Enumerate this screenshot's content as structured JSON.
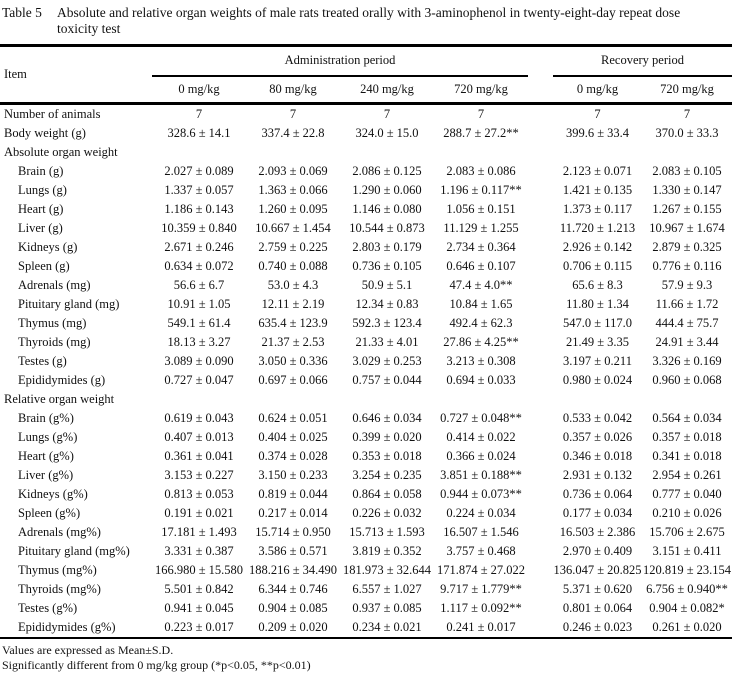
{
  "caption": {
    "label": "Table 5",
    "text": "Absolute and relative organ weights of male rats treated orally with 3-aminophenol in twenty-eight-day repeat dose toxicity test"
  },
  "header": {
    "item_label": "Item",
    "admin_label": "Administration period",
    "recovery_label": "Recovery period",
    "doses": [
      "0 mg/kg",
      "80 mg/kg",
      "240 mg/kg",
      "720 mg/kg",
      "0 mg/kg",
      "720 mg/kg"
    ]
  },
  "table": {
    "rows": [
      {
        "label": "Number of animals",
        "indent": 0,
        "section": false,
        "values": [
          "7",
          "7",
          "7",
          "7",
          "7",
          "7"
        ]
      },
      {
        "label": "Body weight (g)",
        "indent": 0,
        "section": false,
        "values": [
          "328.6 ± 14.1",
          "337.4 ± 22.8",
          "324.0 ± 15.0",
          "288.7 ± 27.2**",
          "399.6 ± 33.4",
          "370.0 ± 33.3"
        ]
      },
      {
        "label": "Absolute organ weight",
        "indent": 0,
        "section": true,
        "values": []
      },
      {
        "label": "Brain (g)",
        "indent": 1,
        "section": false,
        "values": [
          "2.027 ± 0.089",
          "2.093 ± 0.069",
          "2.086 ± 0.125",
          "2.083 ± 0.086",
          "2.123 ± 0.071",
          "2.083 ± 0.105"
        ]
      },
      {
        "label": "Lungs (g)",
        "indent": 1,
        "section": false,
        "values": [
          "1.337 ± 0.057",
          "1.363 ± 0.066",
          "1.290 ± 0.060",
          "1.196 ± 0.117**",
          "1.421 ± 0.135",
          "1.330 ± 0.147"
        ]
      },
      {
        "label": "Heart (g)",
        "indent": 1,
        "section": false,
        "values": [
          "1.186 ± 0.143",
          "1.260 ± 0.095",
          "1.146 ± 0.080",
          "1.056 ± 0.151",
          "1.373 ± 0.117",
          "1.267 ± 0.155"
        ]
      },
      {
        "label": "Liver (g)",
        "indent": 1,
        "section": false,
        "values": [
          "10.359 ± 0.840",
          "10.667 ± 1.454",
          "10.544 ± 0.873",
          "11.129 ± 1.255",
          "11.720 ± 1.213",
          "10.967 ± 1.674"
        ]
      },
      {
        "label": "Kidneys (g)",
        "indent": 1,
        "section": false,
        "values": [
          "2.671 ± 0.246",
          "2.759 ± 0.225",
          "2.803 ± 0.179",
          "2.734 ± 0.364",
          "2.926 ± 0.142",
          "2.879 ± 0.325"
        ]
      },
      {
        "label": "Spleen (g)",
        "indent": 1,
        "section": false,
        "values": [
          "0.634 ± 0.072",
          "0.740 ± 0.088",
          "0.736 ± 0.105",
          "0.646 ± 0.107",
          "0.706 ± 0.115",
          "0.776 ± 0.116"
        ]
      },
      {
        "label": "Adrenals (mg)",
        "indent": 1,
        "section": false,
        "values": [
          "56.6 ± 6.7",
          "53.0 ± 4.3",
          "50.9 ± 5.1",
          "47.4 ± 4.0**",
          "65.6 ± 8.3",
          "57.9 ± 9.3"
        ]
      },
      {
        "label": "Pituitary gland (mg)",
        "indent": 1,
        "section": false,
        "values": [
          "10.91 ± 1.05",
          "12.11 ± 2.19",
          "12.34 ± 0.83",
          "10.84 ± 1.65",
          "11.80 ± 1.34",
          "11.66 ± 1.72"
        ]
      },
      {
        "label": "Thymus (mg)",
        "indent": 1,
        "section": false,
        "values": [
          "549.1 ± 61.4",
          "635.4 ± 123.9",
          "592.3 ± 123.4",
          "492.4 ± 62.3",
          "547.0 ± 117.0",
          "444.4 ± 75.7"
        ]
      },
      {
        "label": "Thyroids (mg)",
        "indent": 1,
        "section": false,
        "values": [
          "18.13 ± 3.27",
          "21.37 ± 2.53",
          "21.33 ± 4.01",
          "27.86 ± 4.25**",
          "21.49 ± 3.35",
          "24.91 ± 3.44"
        ]
      },
      {
        "label": "Testes (g)",
        "indent": 1,
        "section": false,
        "values": [
          "3.089 ± 0.090",
          "3.050 ± 0.336",
          "3.029 ± 0.253",
          "3.213 ± 0.308",
          "3.197 ± 0.211",
          "3.326 ± 0.169"
        ]
      },
      {
        "label": "Epididymides (g)",
        "indent": 1,
        "section": false,
        "values": [
          "0.727 ± 0.047",
          "0.697 ± 0.066",
          "0.757 ± 0.044",
          "0.694 ± 0.033",
          "0.980 ± 0.024",
          "0.960 ± 0.068"
        ]
      },
      {
        "label": "Relative organ weight",
        "indent": 0,
        "section": true,
        "values": []
      },
      {
        "label": "Brain (g%)",
        "indent": 1,
        "section": false,
        "values": [
          "0.619 ± 0.043",
          "0.624 ± 0.051",
          "0.646 ± 0.034",
          "0.727 ± 0.048**",
          "0.533 ± 0.042",
          "0.564 ± 0.034"
        ]
      },
      {
        "label": "Lungs (g%)",
        "indent": 1,
        "section": false,
        "values": [
          "0.407 ± 0.013",
          "0.404 ± 0.025",
          "0.399 ± 0.020",
          "0.414 ± 0.022",
          "0.357 ± 0.026",
          "0.357 ± 0.018"
        ]
      },
      {
        "label": "Heart (g%)",
        "indent": 1,
        "section": false,
        "values": [
          "0.361 ± 0.041",
          "0.374 ± 0.028",
          "0.353 ± 0.018",
          "0.366 ± 0.024",
          "0.346 ± 0.018",
          "0.341 ± 0.018"
        ]
      },
      {
        "label": "Liver (g%)",
        "indent": 1,
        "section": false,
        "values": [
          "3.153 ± 0.227",
          "3.150 ± 0.233",
          "3.254 ± 0.235",
          "3.851 ± 0.188**",
          "2.931 ± 0.132",
          "2.954 ± 0.261"
        ]
      },
      {
        "label": "Kidneys (g%)",
        "indent": 1,
        "section": false,
        "values": [
          "0.813 ± 0.053",
          "0.819 ± 0.044",
          "0.864 ± 0.058",
          "0.944 ± 0.073**",
          "0.736 ± 0.064",
          "0.777 ± 0.040"
        ]
      },
      {
        "label": "Spleen (g%)",
        "indent": 1,
        "section": false,
        "values": [
          "0.191 ± 0.021",
          "0.217 ± 0.014",
          "0.226 ± 0.032",
          "0.224 ± 0.034",
          "0.177 ± 0.034",
          "0.210 ± 0.026"
        ]
      },
      {
        "label": "Adrenals (mg%)",
        "indent": 1,
        "section": false,
        "values": [
          "17.181 ± 1.493",
          "15.714 ± 0.950",
          "15.713 ± 1.593",
          "16.507 ± 1.546",
          "16.503 ± 2.386",
          "15.706 ± 2.675"
        ]
      },
      {
        "label": "Pituitary gland (mg%)",
        "indent": 1,
        "section": false,
        "values": [
          "3.331 ± 0.387",
          "3.586 ± 0.571",
          "3.819 ± 0.352",
          "3.757 ± 0.468",
          "2.970 ± 0.409",
          "3.151 ± 0.411"
        ]
      },
      {
        "label": "Thymus (mg%)",
        "indent": 1,
        "section": false,
        "values": [
          "166.980 ± 15.580",
          "188.216 ± 34.490",
          "181.973 ± 32.644",
          "171.874 ± 27.022",
          "136.047 ± 20.825",
          "120.819 ± 23.154"
        ]
      },
      {
        "label": "Thyroids (mg%)",
        "indent": 1,
        "section": false,
        "values": [
          "5.501 ± 0.842",
          "6.344 ± 0.746",
          "6.557 ± 1.027",
          "9.717 ± 1.779**",
          "5.371 ± 0.620",
          "6.756 ± 0.940**"
        ]
      },
      {
        "label": "Testes (g%)",
        "indent": 1,
        "section": false,
        "values": [
          "0.941 ± 0.045",
          "0.904 ± 0.085",
          "0.937 ± 0.085",
          "1.117 ± 0.092**",
          "0.801 ± 0.064",
          "0.904 ± 0.082*"
        ]
      },
      {
        "label": "Epididymides (g%)",
        "indent": 1,
        "section": false,
        "values": [
          "0.223 ± 0.017",
          "0.209 ± 0.020",
          "0.234 ± 0.021",
          "0.241 ± 0.017",
          "0.246 ± 0.023",
          "0.261 ± 0.020"
        ]
      }
    ]
  },
  "footnotes": [
    "Values are expressed as Mean±S.D.",
    "Significantly different from 0 mg/kg group (*p<0.05, **p<0.01)"
  ],
  "colors": {
    "background": "#ffffff",
    "text": "#111111",
    "rule": "#000000"
  }
}
